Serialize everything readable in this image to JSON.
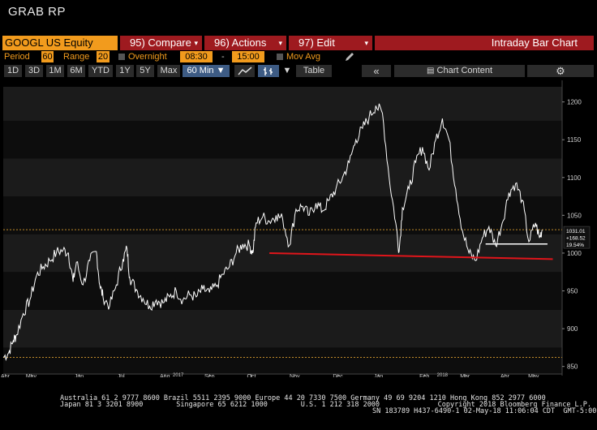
{
  "app": {
    "title": "GRAB RP"
  },
  "toolbar": {
    "ticker": "GOOGL US Equity",
    "compare": "95) Compare",
    "actions": "96) Actions",
    "edit": "97) Edit",
    "chart_type": "Intraday Bar Chart"
  },
  "settings": {
    "period_label": "Period",
    "period_value": "60",
    "range_label": "Range",
    "range_value": "20",
    "overnight_label": "Overnight",
    "start_time": "08:30",
    "dash": "-",
    "end_time": "15:00",
    "mov_avg_label": "Mov Avg"
  },
  "ranges": {
    "items": [
      "1D",
      "3D",
      "1M",
      "6M",
      "YTD",
      "1Y",
      "5Y",
      "Max"
    ],
    "interval": "60 Min ▼",
    "table": "Table",
    "back": "«",
    "chart_content": "Chart Content",
    "settings_icon": "gear-icon"
  },
  "chart_data": {
    "type": "line",
    "series": [
      {
        "values": [
          [
            0.0,
            862
          ],
          [
            0.8,
            868
          ],
          [
            1.5,
            884
          ],
          [
            2.0,
            892
          ],
          [
            3.0,
            920
          ],
          [
            4.0,
            938
          ],
          [
            5.0,
            970
          ],
          [
            6.0,
            982
          ],
          [
            7.0,
            990
          ],
          [
            8.0,
            1001
          ],
          [
            9.0,
            1004
          ],
          [
            9.8,
            1000
          ],
          [
            10.5,
            962
          ],
          [
            11.0,
            988
          ],
          [
            12.0,
            958
          ],
          [
            13.0,
            990
          ],
          [
            14.0,
            1002
          ],
          [
            14.5,
            958
          ],
          [
            15.0,
            942
          ],
          [
            16.0,
            930
          ],
          [
            17.0,
            958
          ],
          [
            18.0,
            992
          ],
          [
            18.6,
            1006
          ],
          [
            19.0,
            968
          ],
          [
            20.0,
            952
          ],
          [
            21.0,
            940
          ],
          [
            22.0,
            930
          ],
          [
            23.0,
            938
          ],
          [
            24.0,
            934
          ],
          [
            25.0,
            942
          ],
          [
            26.0,
            950
          ],
          [
            27.0,
            938
          ],
          [
            28.0,
            945
          ],
          [
            29.0,
            942
          ],
          [
            30.0,
            952
          ],
          [
            31.0,
            948
          ],
          [
            32.0,
            956
          ],
          [
            33.0,
            972
          ],
          [
            34.0,
            982
          ],
          [
            35.0,
            1000
          ],
          [
            36.0,
            1012
          ],
          [
            37.0,
            1010
          ],
          [
            37.5,
            1000
          ],
          [
            38.0,
            1040
          ],
          [
            39.0,
            1048
          ],
          [
            40.0,
            1042
          ],
          [
            41.0,
            1050
          ],
          [
            42.0,
            1045
          ],
          [
            43.0,
            1010
          ],
          [
            44.0,
            1058
          ],
          [
            45.0,
            1062
          ],
          [
            46.0,
            1050
          ],
          [
            47.0,
            1066
          ],
          [
            48.0,
            1056
          ],
          [
            49.0,
            1070
          ],
          [
            50.0,
            1085
          ],
          [
            51.0,
            1100
          ],
          [
            52.0,
            1120
          ],
          [
            53.0,
            1150
          ],
          [
            54.0,
            1165
          ],
          [
            55.0,
            1180
          ],
          [
            56.0,
            1195
          ],
          [
            57.0,
            1185
          ],
          [
            58.0,
            1100
          ],
          [
            59.0,
            1040
          ],
          [
            59.5,
            1002
          ],
          [
            60.0,
            1060
          ],
          [
            61.0,
            1085
          ],
          [
            62.0,
            1120
          ],
          [
            63.0,
            1140
          ],
          [
            64.0,
            1110
          ],
          [
            65.0,
            1150
          ],
          [
            66.0,
            1178
          ],
          [
            67.0,
            1150
          ],
          [
            68.0,
            1085
          ],
          [
            69.0,
            1030
          ],
          [
            70.0,
            1000
          ],
          [
            71.0,
            990
          ],
          [
            72.0,
            1020
          ],
          [
            73.0,
            1035
          ],
          [
            74.0,
            1010
          ],
          [
            75.0,
            1040
          ],
          [
            76.0,
            1080
          ],
          [
            77.0,
            1092
          ],
          [
            78.0,
            1070
          ],
          [
            79.0,
            1015
          ],
          [
            80.0,
            1040
          ],
          [
            80.6,
            1020
          ],
          [
            81.0,
            1031
          ]
        ]
      }
    ],
    "yticks": [
      850,
      900,
      950,
      1000,
      1050,
      1100,
      1150,
      1200
    ],
    "ylim": [
      840,
      1220
    ],
    "xlim": [
      0,
      84
    ],
    "xticks": [
      {
        "label": "Apr",
        "x": 0.3
      },
      {
        "label": "May",
        "x": 4.2
      },
      {
        "label": "Jun",
        "x": 11.4
      },
      {
        "label": "Jul",
        "x": 17.7
      },
      {
        "label": "Aug",
        "x": 24.3
      },
      {
        "label": "Sep",
        "x": 31.0
      },
      {
        "label": "Oct",
        "x": 37.3
      },
      {
        "label": "Nov",
        "x": 43.8
      },
      {
        "label": "Dec",
        "x": 50.3
      },
      {
        "label": "Jan",
        "x": 56.4
      },
      {
        "label": "Feb",
        "x": 63.3
      },
      {
        "label": "Mar",
        "x": 69.4
      },
      {
        "label": "Apr",
        "x": 75.4
      },
      {
        "label": "May",
        "x": 79.7
      }
    ],
    "year_labels": [
      {
        "label": "2017",
        "x": 26.3
      },
      {
        "label": "2018",
        "x": 66.0
      }
    ],
    "price_labels": [
      "1031.01",
      "+168.52",
      "19.54%"
    ],
    "support_line": {
      "x1": 40.0,
      "y1": 1000,
      "x2": 82.6,
      "y2": 992
    },
    "neckline": {
      "x1": 72.5,
      "y1": 1012,
      "x2": 81.8,
      "y2": 1012
    },
    "dotted_top": 1031,
    "dotted_bottom": 862,
    "colors": {
      "price": "#ffffff",
      "support": "#e0151b",
      "neckline": "#ffffff",
      "dotted": "#c08a2a",
      "band_dark": "#0d0d0d",
      "band_light": "#1b1b1b"
    }
  },
  "footer": {
    "line1": "Australia 61 2 9777 8600 Brazil 5511 2395 9000 Europe 44 20 7330 7500 Germany 49 69 9204 1210 Hong Kong 852 2977 6000",
    "line2": "Japan 81 3 3201 8900        Singapore 65 6212 1000        U.S. 1 212 318 2000              Copyright 2018 Bloomberg Finance L.P.",
    "line3": "SN 183789 H437-6490-1 02-May-18 11:06:04 CDT  GMT-5:00"
  }
}
